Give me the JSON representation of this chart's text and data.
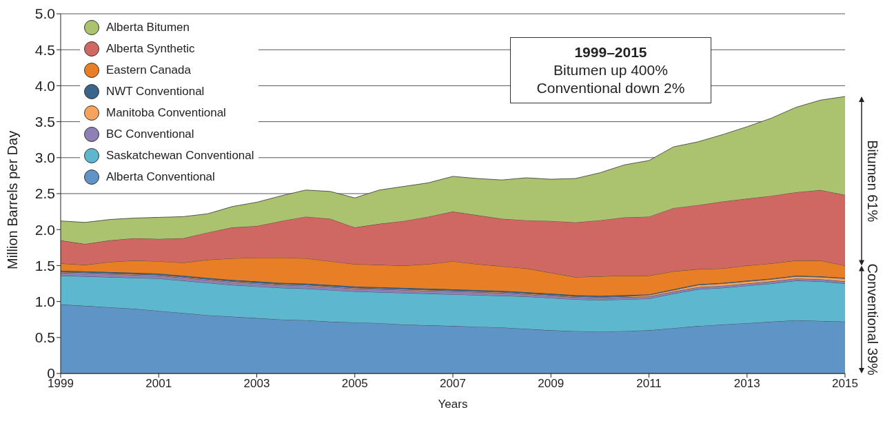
{
  "chart_data": {
    "type": "area",
    "stacked": true,
    "xlabel": "Years",
    "ylabel": "Million Barrels per Day",
    "x": [
      1999,
      1999.5,
      2000,
      2000.5,
      2001,
      2001.5,
      2002,
      2002.5,
      2003,
      2003.5,
      2004,
      2004.5,
      2005,
      2005.5,
      2006,
      2006.5,
      2007,
      2007.5,
      2008,
      2008.5,
      2009,
      2009.5,
      2010,
      2010.5,
      2011,
      2011.5,
      2012,
      2012.5,
      2013,
      2013.5,
      2014,
      2014.5,
      2015
    ],
    "xlim": [
      1999,
      2015
    ],
    "xticks": [
      1999,
      2001,
      2003,
      2005,
      2007,
      2009,
      2011,
      2013,
      2015
    ],
    "ylim": [
      0,
      5
    ],
    "yticks": [
      0,
      0.5,
      {
        "value": 1,
        "label": "1.0"
      },
      1.5,
      {
        "value": 2,
        "label": "2.0"
      },
      2.5,
      {
        "value": 3,
        "label": "3.0"
      },
      3.5,
      {
        "value": 4,
        "label": "4.0"
      },
      4.5,
      {
        "value": 5,
        "label": "5.0"
      }
    ],
    "grid": "y",
    "legend": "top left",
    "series": [
      {
        "name": "Alberta Conventional",
        "color": "#5f94c6",
        "values": [
          0.96,
          0.94,
          0.92,
          0.9,
          0.87,
          0.84,
          0.81,
          0.79,
          0.77,
          0.75,
          0.74,
          0.72,
          0.71,
          0.7,
          0.68,
          0.67,
          0.66,
          0.65,
          0.64,
          0.62,
          0.6,
          0.59,
          0.58,
          0.59,
          0.6,
          0.63,
          0.66,
          0.68,
          0.7,
          0.72,
          0.74,
          0.73,
          0.72
        ]
      },
      {
        "name": "Saskatchewan Conventional",
        "color": "#5db8cf",
        "values": [
          0.4,
          0.41,
          0.42,
          0.43,
          0.45,
          0.45,
          0.45,
          0.44,
          0.44,
          0.44,
          0.44,
          0.44,
          0.43,
          0.43,
          0.44,
          0.44,
          0.44,
          0.44,
          0.44,
          0.45,
          0.45,
          0.44,
          0.44,
          0.44,
          0.44,
          0.48,
          0.51,
          0.51,
          0.52,
          0.53,
          0.55,
          0.55,
          0.53
        ]
      },
      {
        "name": "BC Conventional",
        "color": "#8e7fb5",
        "values": [
          0.04,
          0.04,
          0.04,
          0.04,
          0.04,
          0.04,
          0.04,
          0.04,
          0.04,
          0.04,
          0.04,
          0.04,
          0.04,
          0.04,
          0.04,
          0.04,
          0.04,
          0.04,
          0.04,
          0.03,
          0.03,
          0.03,
          0.03,
          0.03,
          0.03,
          0.03,
          0.03,
          0.03,
          0.03,
          0.03,
          0.03,
          0.03,
          0.03
        ]
      },
      {
        "name": "Manitoba Conventional",
        "color": "#f5a45d",
        "values": [
          0.01,
          0.01,
          0.01,
          0.01,
          0.01,
          0.01,
          0.01,
          0.01,
          0.01,
          0.01,
          0.01,
          0.01,
          0.01,
          0.01,
          0.01,
          0.01,
          0.01,
          0.01,
          0.01,
          0.01,
          0.01,
          0.01,
          0.01,
          0.01,
          0.02,
          0.02,
          0.03,
          0.03,
          0.03,
          0.03,
          0.03,
          0.03,
          0.04
        ]
      },
      {
        "name": "NWT Conventional",
        "color": "#3a6489",
        "values": [
          0.02,
          0.02,
          0.02,
          0.02,
          0.02,
          0.02,
          0.02,
          0.02,
          0.02,
          0.02,
          0.02,
          0.02,
          0.02,
          0.02,
          0.02,
          0.02,
          0.02,
          0.02,
          0.02,
          0.02,
          0.02,
          0.02,
          0.02,
          0.02,
          0.01,
          0.01,
          0.01,
          0.01,
          0.01,
          0.01,
          0.01,
          0.01,
          0.01
        ]
      },
      {
        "name": "Eastern Canada",
        "color": "#e87f27",
        "values": [
          0.1,
          0.09,
          0.14,
          0.17,
          0.17,
          0.18,
          0.25,
          0.3,
          0.33,
          0.35,
          0.35,
          0.33,
          0.31,
          0.31,
          0.31,
          0.34,
          0.39,
          0.36,
          0.34,
          0.33,
          0.29,
          0.25,
          0.27,
          0.27,
          0.26,
          0.25,
          0.21,
          0.2,
          0.21,
          0.21,
          0.21,
          0.22,
          0.17
        ]
      },
      {
        "name": "Alberta Synthetic",
        "color": "#cf6762",
        "values": [
          0.32,
          0.29,
          0.3,
          0.31,
          0.31,
          0.34,
          0.38,
          0.43,
          0.44,
          0.51,
          0.58,
          0.59,
          0.51,
          0.57,
          0.62,
          0.66,
          0.69,
          0.68,
          0.66,
          0.67,
          0.72,
          0.76,
          0.78,
          0.81,
          0.82,
          0.88,
          0.89,
          0.93,
          0.93,
          0.94,
          0.95,
          0.98,
          0.98
        ]
      },
      {
        "name": "Alberta Bitumen",
        "color": "#abc26f",
        "values": [
          0.27,
          0.3,
          0.29,
          0.28,
          0.3,
          0.3,
          0.26,
          0.29,
          0.33,
          0.35,
          0.37,
          0.38,
          0.41,
          0.47,
          0.48,
          0.47,
          0.49,
          0.51,
          0.54,
          0.59,
          0.58,
          0.61,
          0.66,
          0.73,
          0.78,
          0.85,
          0.88,
          0.93,
          1.0,
          1.08,
          1.18,
          1.25,
          1.37
        ]
      }
    ],
    "annotations": [
      "1999–2015",
      "Bitumen up 400%",
      "Conventional down 2%",
      "Bitumen 61%",
      "Conventional 39%"
    ]
  }
}
